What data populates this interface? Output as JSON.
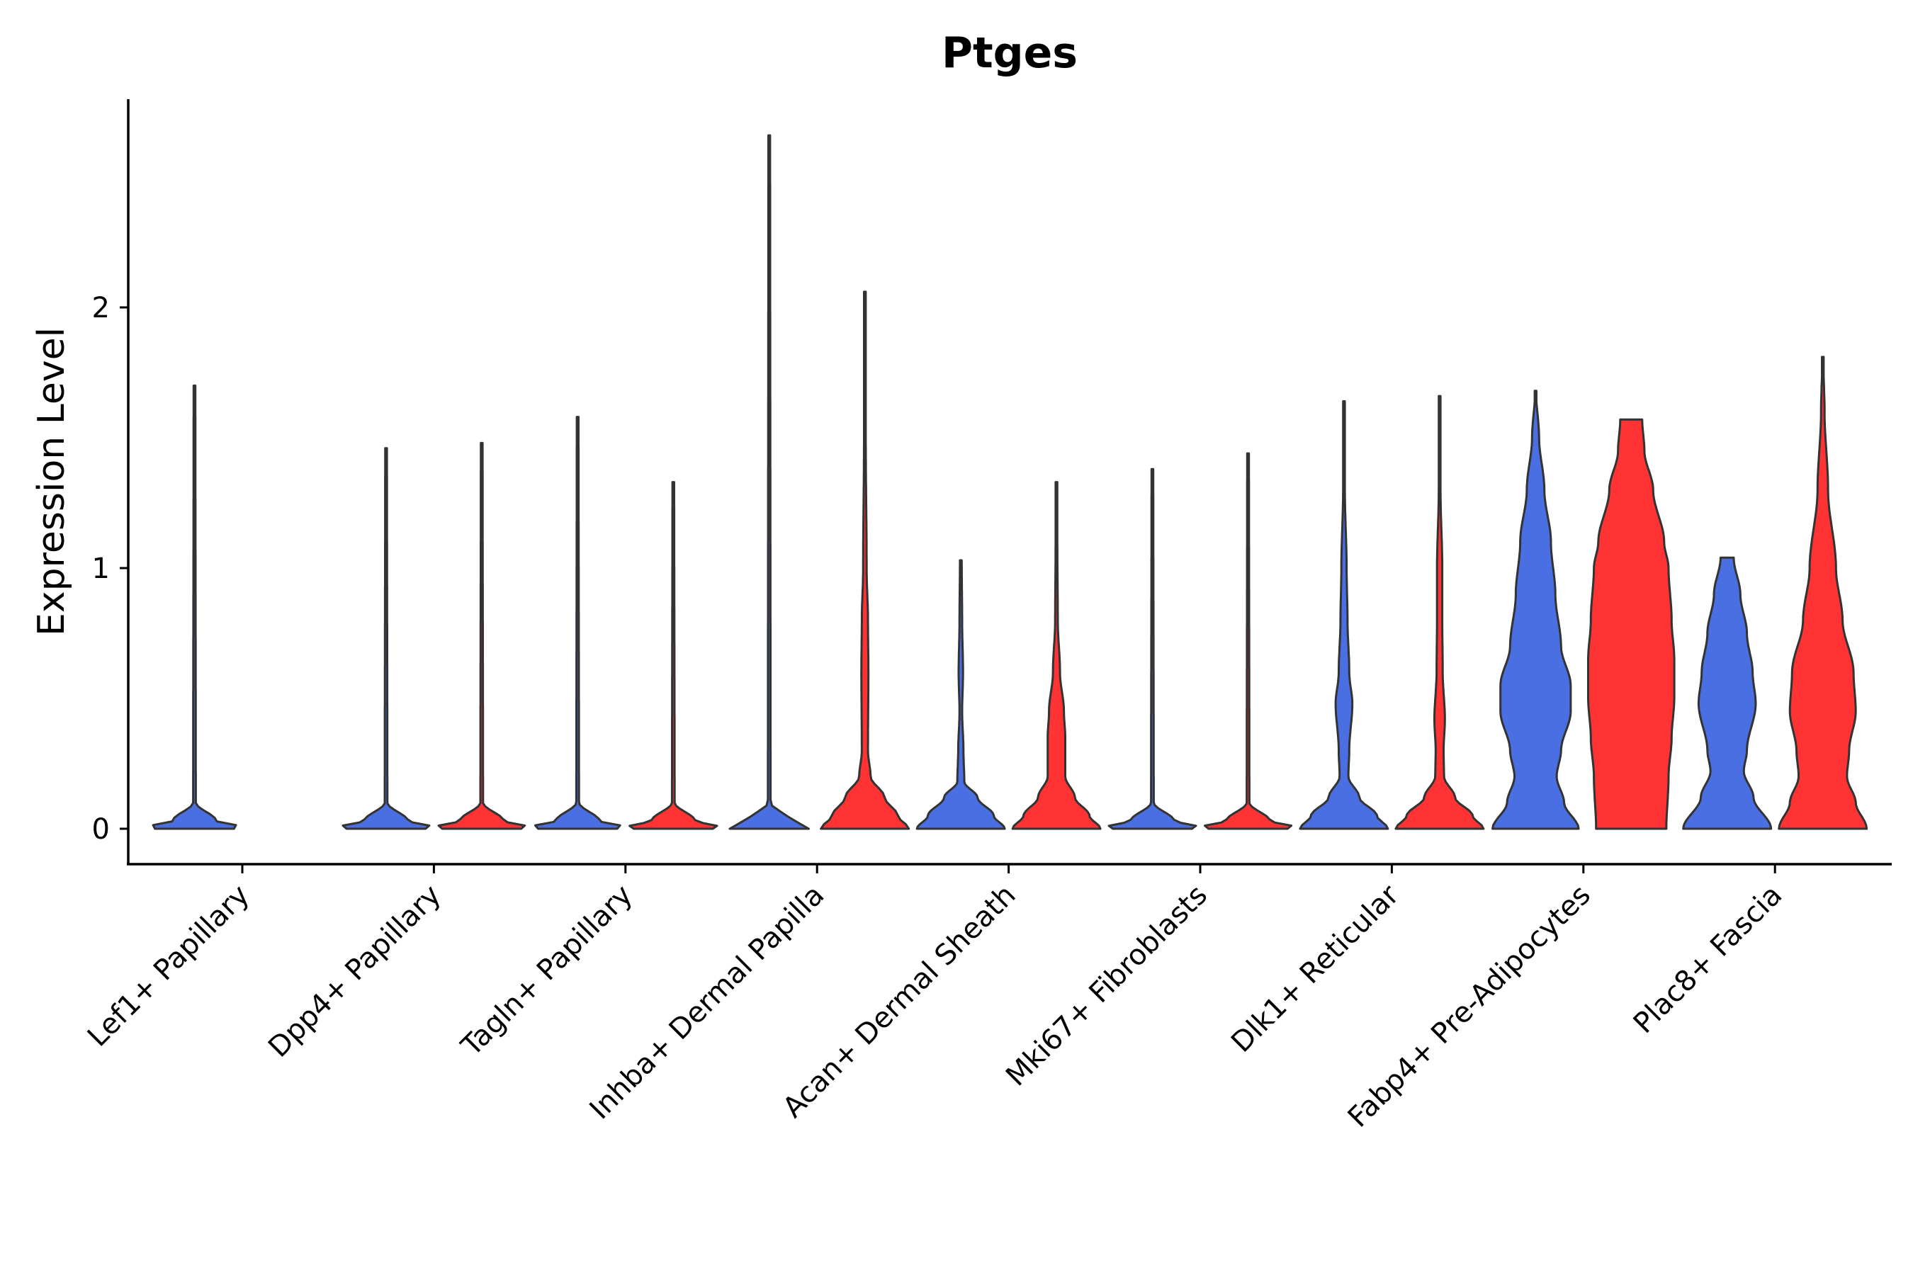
{
  "chart_data": {
    "type": "violin",
    "title": "Ptges",
    "xlabel": "",
    "ylabel": "Expression Level",
    "ylim": [
      -0.13,
      2.8
    ],
    "yticks": [
      0,
      1,
      2
    ],
    "categories": [
      "Lef1+ Papillary",
      "Dpp4+ Papillary",
      "Tagln+ Papillary",
      "Inhba+ Dermal Papilla",
      "Acan+ Dermal Sheath",
      "Mki67+ Fibroblasts",
      "Dlk1+ Reticular",
      "Fabp4+ Pre-Adipocytes",
      "Plac8+ Fascia"
    ],
    "groups": [
      {
        "name": "",
        "color": "#4A6FE3"
      },
      {
        "name": "",
        "color": "#FF3333"
      }
    ],
    "violins": [
      {
        "category": 0,
        "group": 0,
        "max": 1.7,
        "profile": [
          [
            0,
            0.9
          ],
          [
            0.01,
            1.0
          ],
          [
            0.03,
            0.5
          ],
          [
            0.1,
            0.03
          ],
          [
            1.7,
            0.02
          ]
        ]
      },
      {
        "category": 1,
        "group": 0,
        "max": 1.46,
        "profile": [
          [
            0,
            0.9
          ],
          [
            0.01,
            1.0
          ],
          [
            0.03,
            0.5
          ],
          [
            0.1,
            0.03
          ],
          [
            1.46,
            0.02
          ]
        ]
      },
      {
        "category": 1,
        "group": 1,
        "max": 1.48,
        "profile": [
          [
            0,
            0.9
          ],
          [
            0.01,
            1.0
          ],
          [
            0.03,
            0.5
          ],
          [
            0.1,
            0.03
          ],
          [
            1.48,
            0.02
          ]
        ]
      },
      {
        "category": 2,
        "group": 0,
        "max": 1.58,
        "profile": [
          [
            0,
            0.9
          ],
          [
            0.01,
            1.0
          ],
          [
            0.03,
            0.5
          ],
          [
            0.1,
            0.03
          ],
          [
            1.58,
            0.02
          ]
        ]
      },
      {
        "category": 2,
        "group": 1,
        "max": 1.33,
        "profile": [
          [
            0,
            0.9
          ],
          [
            0.01,
            1.0
          ],
          [
            0.03,
            0.5
          ],
          [
            0.1,
            0.03
          ],
          [
            1.33,
            0.02
          ]
        ]
      },
      {
        "category": 3,
        "group": 0,
        "max": 2.66,
        "profile": [
          [
            0,
            0.9
          ],
          [
            0.01,
            1.0
          ],
          [
            0.03,
            0.5
          ],
          [
            0.1,
            0.03
          ],
          [
            2.66,
            0.02
          ]
        ]
      },
      {
        "category": 3,
        "group": 1,
        "max": 2.06,
        "profile": [
          [
            0,
            1.0
          ],
          [
            0.05,
            0.75
          ],
          [
            0.12,
            0.45
          ],
          [
            0.2,
            0.13
          ],
          [
            0.3,
            0.07
          ],
          [
            0.6,
            0.08
          ],
          [
            0.8,
            0.07
          ],
          [
            1.0,
            0.04
          ],
          [
            1.5,
            0.02
          ],
          [
            2.06,
            0.01
          ]
        ]
      },
      {
        "category": 4,
        "group": 0,
        "max": 1.03,
        "profile": [
          [
            0,
            1.0
          ],
          [
            0.05,
            0.75
          ],
          [
            0.12,
            0.38
          ],
          [
            0.18,
            0.08
          ],
          [
            0.3,
            0.06
          ],
          [
            0.45,
            0.03
          ],
          [
            0.6,
            0.05
          ],
          [
            0.8,
            0.03
          ],
          [
            1.03,
            0.02
          ]
        ]
      },
      {
        "category": 4,
        "group": 1,
        "max": 1.33,
        "profile": [
          [
            0,
            1.0
          ],
          [
            0.05,
            0.75
          ],
          [
            0.12,
            0.42
          ],
          [
            0.2,
            0.2
          ],
          [
            0.35,
            0.2
          ],
          [
            0.45,
            0.17
          ],
          [
            0.6,
            0.08
          ],
          [
            0.8,
            0.03
          ],
          [
            1.1,
            0.02
          ],
          [
            1.33,
            0.01
          ]
        ]
      },
      {
        "category": 5,
        "group": 0,
        "max": 1.38,
        "profile": [
          [
            0,
            0.9
          ],
          [
            0.01,
            1.0
          ],
          [
            0.03,
            0.5
          ],
          [
            0.1,
            0.03
          ],
          [
            1.38,
            0.02
          ]
        ]
      },
      {
        "category": 5,
        "group": 1,
        "max": 1.44,
        "profile": [
          [
            0,
            0.9
          ],
          [
            0.01,
            1.0
          ],
          [
            0.03,
            0.5
          ],
          [
            0.1,
            0.03
          ],
          [
            1.44,
            0.02
          ]
        ]
      },
      {
        "category": 6,
        "group": 0,
        "max": 1.64,
        "profile": [
          [
            0,
            1.0
          ],
          [
            0.05,
            0.75
          ],
          [
            0.12,
            0.35
          ],
          [
            0.2,
            0.1
          ],
          [
            0.3,
            0.12
          ],
          [
            0.48,
            0.19
          ],
          [
            0.6,
            0.12
          ],
          [
            0.8,
            0.08
          ],
          [
            1.0,
            0.06
          ],
          [
            1.3,
            0.02
          ],
          [
            1.64,
            0.01
          ]
        ]
      },
      {
        "category": 6,
        "group": 1,
        "max": 1.66,
        "profile": [
          [
            0,
            1.0
          ],
          [
            0.05,
            0.75
          ],
          [
            0.12,
            0.35
          ],
          [
            0.2,
            0.1
          ],
          [
            0.3,
            0.09
          ],
          [
            0.42,
            0.12
          ],
          [
            0.6,
            0.07
          ],
          [
            0.8,
            0.06
          ],
          [
            1.0,
            0.06
          ],
          [
            1.3,
            0.02
          ],
          [
            1.66,
            0.01
          ]
        ]
      },
      {
        "category": 7,
        "group": 0,
        "max": 1.68,
        "profile": [
          [
            0,
            0.98
          ],
          [
            0.1,
            0.65
          ],
          [
            0.2,
            0.48
          ],
          [
            0.3,
            0.58
          ],
          [
            0.45,
            0.8
          ],
          [
            0.55,
            0.8
          ],
          [
            0.7,
            0.58
          ],
          [
            0.9,
            0.45
          ],
          [
            1.1,
            0.35
          ],
          [
            1.3,
            0.2
          ],
          [
            1.5,
            0.08
          ],
          [
            1.68,
            0.01
          ]
        ]
      },
      {
        "category": 7,
        "group": 1,
        "max": 1.57,
        "profile": [
          [
            0,
            0.8
          ],
          [
            0.2,
            0.85
          ],
          [
            0.35,
            0.92
          ],
          [
            0.5,
            0.98
          ],
          [
            0.65,
            0.98
          ],
          [
            0.8,
            0.92
          ],
          [
            1.0,
            0.85
          ],
          [
            1.1,
            0.75
          ],
          [
            1.3,
            0.5
          ],
          [
            1.45,
            0.3
          ],
          [
            1.57,
            0.25
          ]
        ]
      },
      {
        "category": 8,
        "group": 0,
        "max": 1.04,
        "profile": [
          [
            0,
            1.0
          ],
          [
            0.12,
            0.6
          ],
          [
            0.22,
            0.38
          ],
          [
            0.3,
            0.45
          ],
          [
            0.48,
            0.65
          ],
          [
            0.6,
            0.58
          ],
          [
            0.75,
            0.45
          ],
          [
            0.9,
            0.3
          ],
          [
            1.04,
            0.15
          ]
        ]
      },
      {
        "category": 8,
        "group": 1,
        "max": 1.81,
        "profile": [
          [
            0,
            1.0
          ],
          [
            0.1,
            0.75
          ],
          [
            0.2,
            0.55
          ],
          [
            0.3,
            0.6
          ],
          [
            0.45,
            0.75
          ],
          [
            0.6,
            0.7
          ],
          [
            0.8,
            0.45
          ],
          [
            1.0,
            0.3
          ],
          [
            1.3,
            0.12
          ],
          [
            1.6,
            0.04
          ],
          [
            1.81,
            0.01
          ]
        ]
      }
    ]
  }
}
